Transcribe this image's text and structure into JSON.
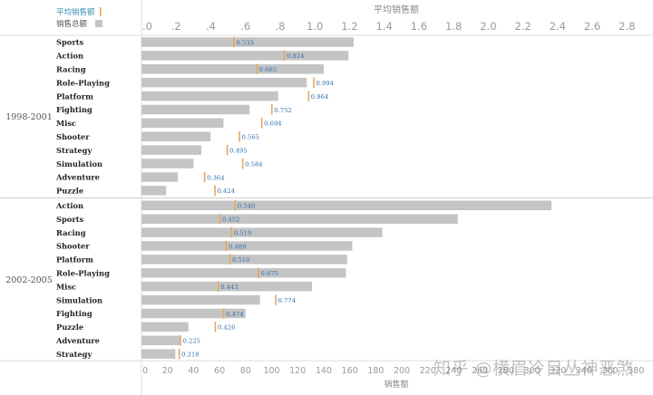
{
  "legend": {
    "avg_label": "平均销售额",
    "total_label": "销售总额",
    "avg_color": "#e8a75c",
    "total_color": "#c4c4c4"
  },
  "watermark": "知乎 @横眉冷目丛神恶煞",
  "chart_data": {
    "type": "bar",
    "top_axis": {
      "title": "平均销售额",
      "ticks": [
        0,
        0.2,
        0.4,
        0.6,
        0.8,
        1.0,
        1.2,
        1.4,
        1.6,
        1.8,
        2.0,
        2.2,
        2.4,
        2.6,
        2.8
      ],
      "tick_labels": [
        ".0",
        ".2",
        ".4",
        ".6",
        ".8",
        "1.0",
        "1.2",
        "1.4",
        "1.6",
        "1.8",
        "2.0",
        "2.2",
        "2.4",
        "2.6",
        "2.8"
      ],
      "range": [
        0,
        2.95
      ]
    },
    "bottom_axis": {
      "title": "销售额",
      "ticks": [
        0,
        20,
        40,
        60,
        80,
        100,
        120,
        140,
        160,
        180,
        200,
        220,
        240,
        260,
        280,
        300,
        320,
        340,
        360,
        380
      ],
      "range": [
        0,
        393
      ]
    },
    "groups": [
      {
        "label": "1998-2001",
        "rows": [
          {
            "genre": "Sports",
            "total": 163,
            "avg": 0.533
          },
          {
            "genre": "Action",
            "total": 159,
            "avg": 0.824
          },
          {
            "genre": "Racing",
            "total": 140,
            "avg": 0.665
          },
          {
            "genre": "Role-Playing",
            "total": 127,
            "avg": 0.994
          },
          {
            "genre": "Platform",
            "total": 105,
            "avg": 0.964
          },
          {
            "genre": "Fighting",
            "total": 83,
            "avg": 0.752
          },
          {
            "genre": "Misc",
            "total": 63,
            "avg": 0.694
          },
          {
            "genre": "Shooter",
            "total": 53,
            "avg": 0.565
          },
          {
            "genre": "Strategy",
            "total": 46,
            "avg": 0.495
          },
          {
            "genre": "Simulation",
            "total": 40,
            "avg": 0.584
          },
          {
            "genre": "Adventure",
            "total": 28,
            "avg": 0.364
          },
          {
            "genre": "Puzzle",
            "total": 19,
            "avg": 0.424
          }
        ]
      },
      {
        "label": "2002-2005",
        "rows": [
          {
            "genre": "Action",
            "total": 315,
            "avg": 0.54
          },
          {
            "genre": "Sports",
            "total": 243,
            "avg": 0.452
          },
          {
            "genre": "Racing",
            "total": 185,
            "avg": 0.519
          },
          {
            "genre": "Shooter",
            "total": 162,
            "avg": 0.489
          },
          {
            "genre": "Platform",
            "total": 158,
            "avg": 0.51
          },
          {
            "genre": "Role-Playing",
            "total": 157,
            "avg": 0.675
          },
          {
            "genre": "Misc",
            "total": 131,
            "avg": 0.443
          },
          {
            "genre": "Simulation",
            "total": 91,
            "avg": 0.774
          },
          {
            "genre": "Fighting",
            "total": 80,
            "avg": 0.474
          },
          {
            "genre": "Puzzle",
            "total": 36,
            "avg": 0.426
          },
          {
            "genre": "Adventure",
            "total": 30,
            "avg": 0.225
          },
          {
            "genre": "Strategy",
            "total": 26,
            "avg": 0.218
          }
        ]
      }
    ]
  }
}
